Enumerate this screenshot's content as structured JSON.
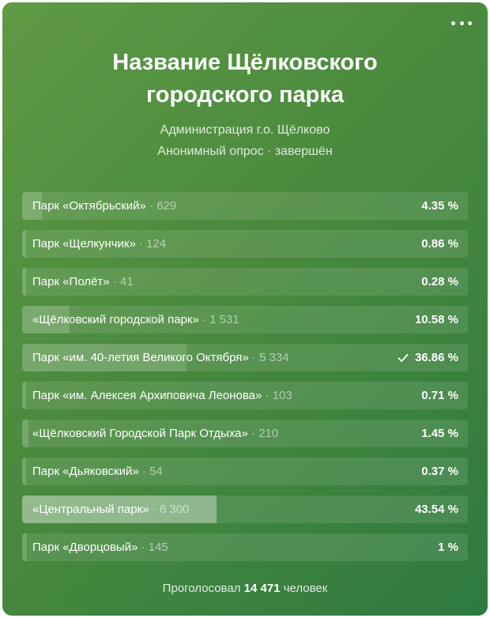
{
  "poll": {
    "title": "Название Щёлковского городского парка",
    "author": "Администрация г.о. Щёлково",
    "meta": "Анонимный опрос · завершён",
    "menu_icon": "more-dots-icon",
    "options": [
      {
        "label": "Парк «Октябрьский»",
        "count": "629",
        "percent": "4.35 %",
        "share": 4.35
      },
      {
        "label": "Парк «Щелкунчик»",
        "count": "124",
        "percent": "0.86 %",
        "share": 0.86
      },
      {
        "label": "Парк «Полёт»",
        "count": "41",
        "percent": "0.28 %",
        "share": 0.28
      },
      {
        "label": "«Щёлковский городской парк»",
        "count": "1 531",
        "percent": "10.58 %",
        "share": 10.58
      },
      {
        "label": "Парк «им. 40-летия Великого Октября»",
        "count": "5 334",
        "percent": "36.86 %",
        "share": 36.86,
        "chosen": true
      },
      {
        "label": "Парк «им. Алексея Архиповича Леонова»",
        "count": "103",
        "percent": "0.71 %",
        "share": 0.71
      },
      {
        "label": "«Щёлковский Городской Парк Отдыха»",
        "count": "210",
        "percent": "1.45 %",
        "share": 1.45
      },
      {
        "label": "Парк «Дьяковский»",
        "count": "54",
        "percent": "0.37 %",
        "share": 0.37
      },
      {
        "label": "«Центральный парк»",
        "count": "6 300",
        "percent": "43.54 %",
        "share": 43.54,
        "winner": true
      },
      {
        "label": "Парк «Дворцовый»",
        "count": "145",
        "percent": "1 %",
        "share": 1
      }
    ],
    "footer": {
      "prefix": "Проголосовал",
      "total": "14 471",
      "suffix": "человек"
    }
  }
}
